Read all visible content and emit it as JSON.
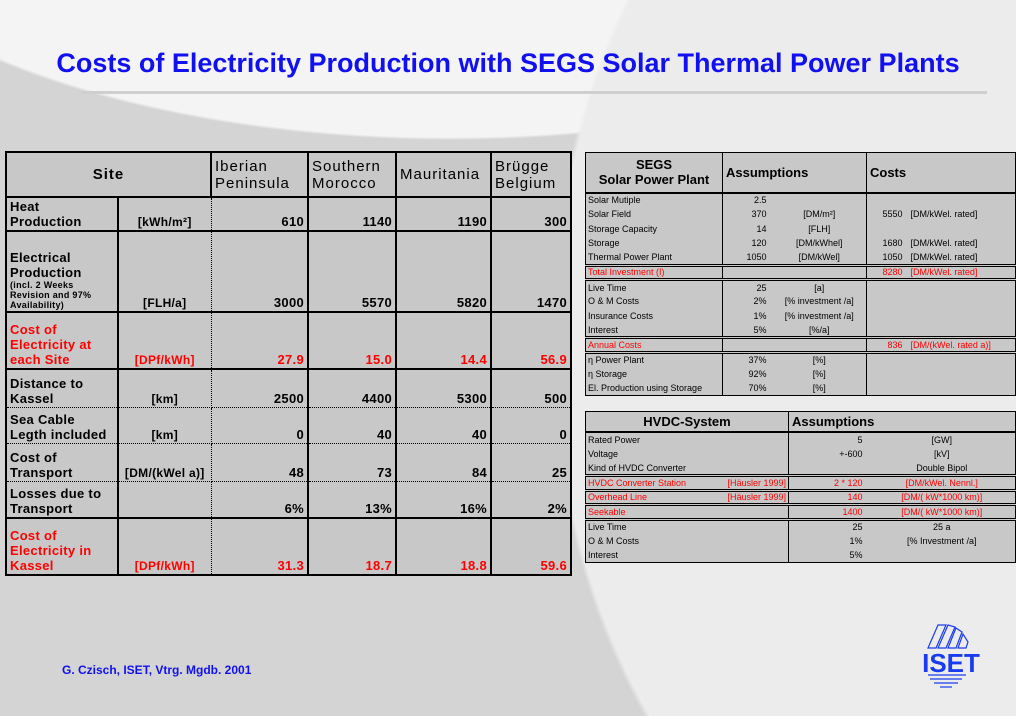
{
  "title": "Costs of Electricity Production with SEGS Solar Thermal Power Plants",
  "footer": "G. Czisch, ISET, Vtrg. Mgdb. 2001",
  "logo": "ISET",
  "sites": {
    "header": "Site",
    "columns": [
      "Iberian Peninsula",
      "Southern Morocco",
      "Mauritania",
      "Brügge Belgium"
    ],
    "rows": [
      {
        "label": "Heat Production",
        "unit": "[kWh/m²]",
        "values": [
          "610",
          "1140",
          "1190",
          "300"
        ]
      },
      {
        "label": "Electrical Production",
        "note": "(incl. 2 Weeks Revision and 97% Availability)",
        "unit": "[FLH/a]",
        "values": [
          "3000",
          "5570",
          "5820",
          "1470"
        ]
      },
      {
        "label": "Cost of Electricity at each Site",
        "unit": "[DPf/kWh]",
        "values": [
          "27.9",
          "15.0",
          "14.4",
          "56.9"
        ]
      },
      {
        "label": "Distance to Kassel",
        "unit": "[km]",
        "values": [
          "2500",
          "4400",
          "5300",
          "500"
        ]
      },
      {
        "label": "Sea Cable Legth included",
        "unit": "[km]",
        "values": [
          "0",
          "40",
          "40",
          "0"
        ]
      },
      {
        "label": "Cost of Transport",
        "unit": "[DM/(kWel a)]",
        "values": [
          "48",
          "73",
          "84",
          "25"
        ]
      },
      {
        "label": "Losses due to Transport",
        "unit": "",
        "values": [
          "6%",
          "13%",
          "16%",
          "2%"
        ]
      },
      {
        "label": "Cost of Electricity in Kassel",
        "unit": "[DPf/kWh]",
        "values": [
          "31.3",
          "18.7",
          "18.8",
          "59.6"
        ]
      }
    ]
  },
  "segs": {
    "h1": "SEGS",
    "h2": "Solar Power Plant",
    "h_assump": "Assumptions",
    "h_costs": "Costs",
    "rows": [
      {
        "label": "Solar Mutiple",
        "value": "2.5",
        "unit": "",
        "cost": "",
        "cunit": ""
      },
      {
        "label": "Solar Field",
        "value": "370",
        "unit": "[DM/m²]",
        "cost": "5550",
        "cunit": "[DM/kWel. rated]"
      },
      {
        "label": "Storage Capacity",
        "value": "14",
        "unit": "[FLH]",
        "cost": "",
        "cunit": ""
      },
      {
        "label": "Storage",
        "value": "120",
        "unit": "[DM/kWhel]",
        "cost": "1680",
        "cunit": "[DM/kWel. rated]"
      },
      {
        "label": "Thermal Power Plant",
        "value": "1050",
        "unit": "[DM/kWel]",
        "cost": "1050",
        "cunit": "[DM/kWel. rated]"
      },
      {
        "label": "Total Investment (I)",
        "value": "",
        "unit": "",
        "cost": "8280",
        "cunit": "[DM/kWel. rated]"
      },
      {
        "label": "Live Time",
        "value": "25",
        "unit": "[a]",
        "cost": "",
        "cunit": ""
      },
      {
        "label": "O & M Costs",
        "value": "2%",
        "unit": "[% investment /a]",
        "cost": "",
        "cunit": ""
      },
      {
        "label": "Insurance Costs",
        "value": "1%",
        "unit": "[% investment /a]",
        "cost": "",
        "cunit": ""
      },
      {
        "label": "Interest",
        "value": "5%",
        "unit": "[%/a]",
        "cost": "",
        "cunit": ""
      },
      {
        "label": "Annual Costs",
        "value": "",
        "unit": "",
        "cost": "836",
        "cunit": "[DM/(kWel. rated a)]"
      },
      {
        "label": "η Power Plant",
        "value": "37%",
        "unit": "[%]",
        "cost": "",
        "cunit": ""
      },
      {
        "label": "η Storage",
        "value": "92%",
        "unit": "[%]",
        "cost": "",
        "cunit": ""
      },
      {
        "label": "El. Production using Storage",
        "value": "70%",
        "unit": "[%]",
        "cost": "",
        "cunit": ""
      }
    ]
  },
  "hvdc": {
    "h1": "HVDC-System",
    "h2": "Assumptions",
    "rows": [
      {
        "label": "Rated Power",
        "ref": "",
        "value": "5",
        "unit": "[GW]"
      },
      {
        "label": "Voltage",
        "ref": "",
        "value": "+-600",
        "unit": "[kV]"
      },
      {
        "label": "Kind of HVDC Converter",
        "ref": "",
        "value": "",
        "unit": "Double Bipol"
      },
      {
        "label": "HVDC Converter Station",
        "ref": "[Häusler 1999]",
        "value": "2 * 120",
        "unit": "[DM/kWel. Nennl.]"
      },
      {
        "label": "Overhead Line",
        "ref": "[Häusler 1999]",
        "value": "140",
        "unit": "[DM/( kW*1000 km)]"
      },
      {
        "label": "Seekable",
        "ref": "",
        "value": "1400",
        "unit": "[DM/( kW*1000 km)]"
      },
      {
        "label": "Live Time",
        "ref": "",
        "value": "25",
        "unit": "25 a"
      },
      {
        "label": "O & M Costs",
        "ref": "",
        "value": "1%",
        "unit": "[% Investment /a]"
      },
      {
        "label": "Interest",
        "ref": "",
        "value": "5%",
        "unit": ""
      }
    ]
  }
}
